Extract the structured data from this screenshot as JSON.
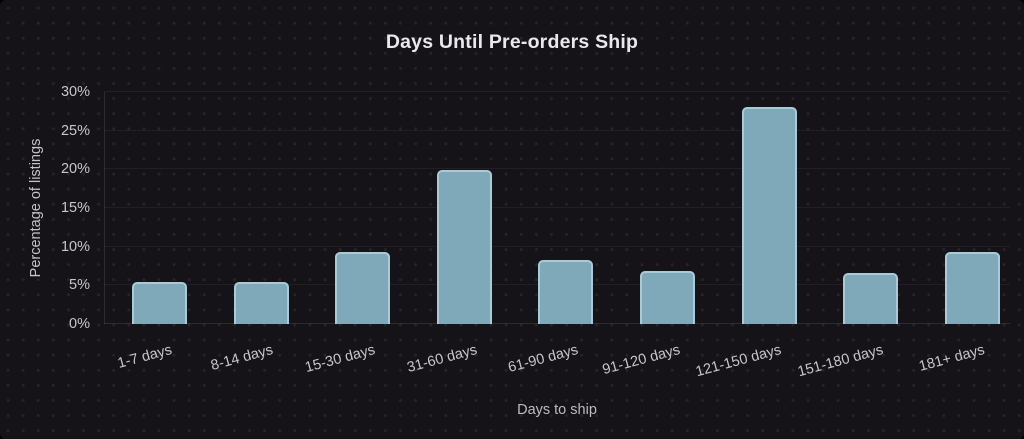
{
  "chart_data": {
    "type": "bar",
    "title": "Days Until Pre-orders Ship",
    "xlabel": "Days to ship",
    "ylabel": "Percentage of listings",
    "categories": [
      "1-7 days",
      "8-14 days",
      "15-30 days",
      "31-60 days",
      "61-90 days",
      "91-120 days",
      "121-150 days",
      "151-180 days",
      "181+ days"
    ],
    "values": [
      5.4,
      5.4,
      9.3,
      19.9,
      8.3,
      6.8,
      28.1,
      6.6,
      9.3
    ],
    "ylim": [
      0,
      30
    ],
    "ytick_step": 5,
    "ytick_labels": [
      "0%",
      "5%",
      "10%",
      "15%",
      "20%",
      "25%",
      "30%"
    ],
    "grid": true,
    "legend": "none",
    "colors": {
      "background": "#151318",
      "bar_fill": "#7fa9b8",
      "bar_border": "#a9cbd7",
      "title_text": "#e9e9ec",
      "tick_text": "#c7c7ca"
    }
  }
}
